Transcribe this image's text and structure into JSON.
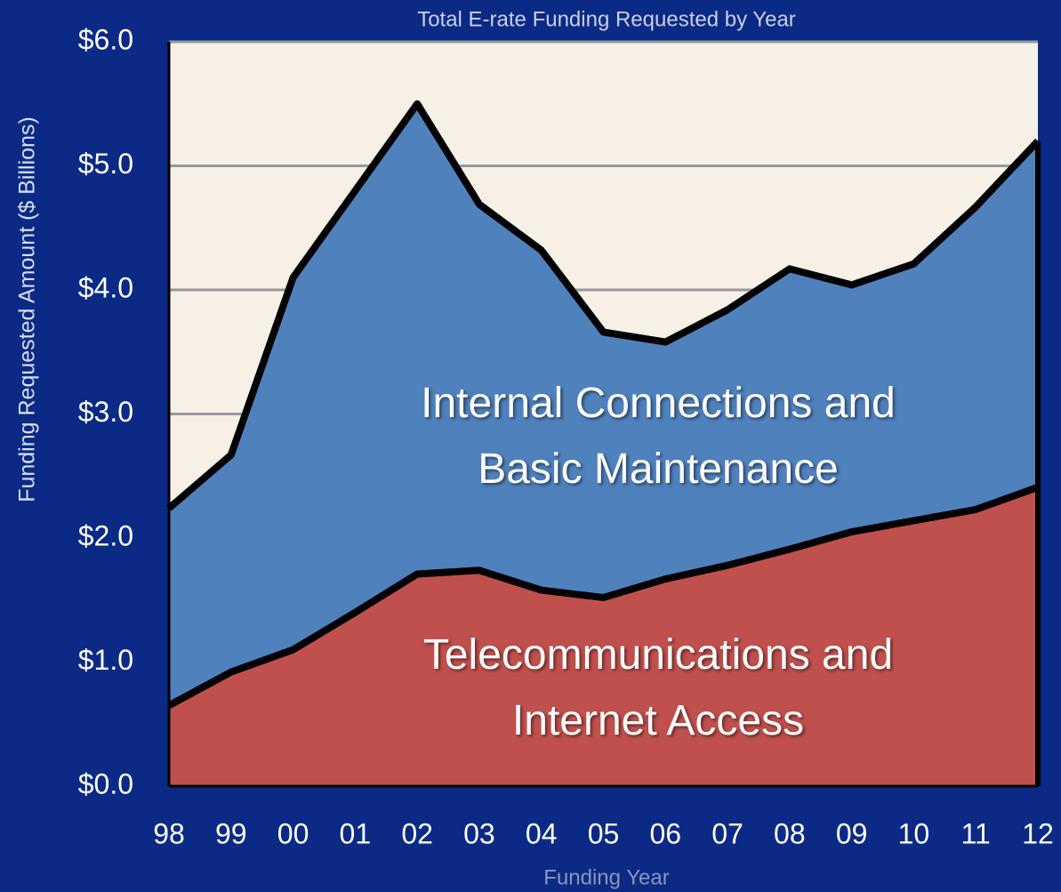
{
  "chart_data": {
    "type": "stacked_area",
    "title": "Total E-rate Funding Requested by Year",
    "x_label": "Funding Year",
    "y_label": "Funding Requested  Amount  ($ Billions)",
    "categories": [
      "98",
      "99",
      "00",
      "01",
      "02",
      "03",
      "04",
      "05",
      "06",
      "07",
      "08",
      "09",
      "10",
      "11",
      "12"
    ],
    "series": [
      {
        "name": "Telecommunications and Internet Access",
        "color": "#c0504d",
        "values": [
          0.65,
          0.92,
          1.1,
          1.4,
          1.71,
          1.74,
          1.58,
          1.52,
          1.67,
          1.78,
          1.91,
          2.05,
          2.14,
          2.23,
          2.41
        ]
      },
      {
        "name": "Internal Connections and Basic Maintenance",
        "color": "#4f81bd",
        "values": [
          1.59,
          1.75,
          3.0,
          3.4,
          3.79,
          2.95,
          2.74,
          2.14,
          1.91,
          2.06,
          2.26,
          1.99,
          2.07,
          2.44,
          2.79
        ]
      }
    ],
    "ylim": [
      0,
      6
    ],
    "yticks": [
      {
        "value": 0,
        "label": "$0.0"
      },
      {
        "value": 1,
        "label": "$1.0"
      },
      {
        "value": 2,
        "label": "$2.0"
      },
      {
        "value": 3,
        "label": "$3.0"
      },
      {
        "value": 4,
        "label": "$4.0"
      },
      {
        "value": 5,
        "label": "$5.0"
      },
      {
        "value": 6,
        "label": "$6.0"
      }
    ],
    "grid": true
  }
}
